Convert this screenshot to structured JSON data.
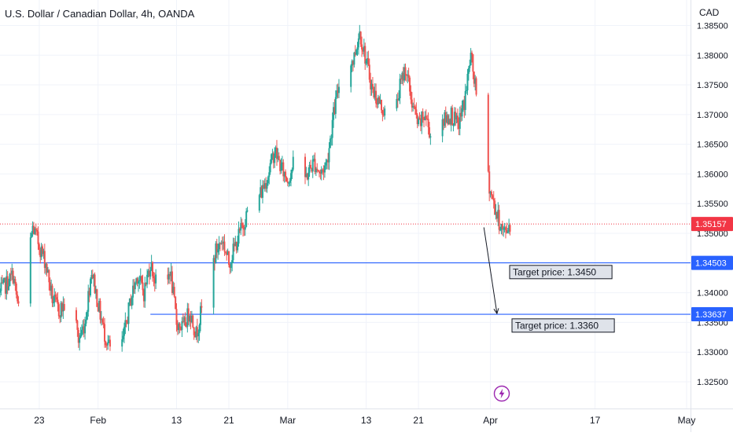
{
  "header": {
    "title": "U.S. Dollar / Canadian Dollar, 4h, OANDA",
    "currency": "CAD"
  },
  "icons": {
    "event": "flash-icon"
  },
  "colors": {
    "up": "#26a69a",
    "down": "#ef5350",
    "level_line": "#2962ff",
    "current_price": "#f23645",
    "arrow": "#131722"
  },
  "chart_data": {
    "type": "candlestick",
    "title": "U.S. Dollar / Canadian Dollar, 4h, OANDA",
    "y_unit": "CAD",
    "ylim": [
      1.3205,
      1.3885
    ],
    "yticks": [
      "1.32500",
      "1.33000",
      "1.33500",
      "1.34000",
      "1.34500",
      "1.35000",
      "1.35500",
      "1.36000",
      "1.36500",
      "1.37000",
      "1.37500",
      "1.38000",
      "1.38500"
    ],
    "xticks": [
      {
        "label": "23",
        "date": "2024-01-23"
      },
      {
        "label": "Feb",
        "date": "2024-02-01"
      },
      {
        "label": "13",
        "date": "2024-02-13"
      },
      {
        "label": "21",
        "date": "2024-02-21"
      },
      {
        "label": "Mar",
        "date": "2024-03-01"
      },
      {
        "label": "13",
        "date": "2024-03-13"
      },
      {
        "label": "21",
        "date": "2024-03-21"
      },
      {
        "label": "Apr",
        "date": "2024-04-01"
      },
      {
        "label": "17",
        "date": "2024-04-17"
      },
      {
        "label": "May",
        "date": "2024-05-01"
      }
    ],
    "grid": true,
    "close_path": [
      [
        "2024-01-17",
        1.34
      ],
      [
        "2024-01-19",
        1.343
      ],
      [
        "2024-01-20",
        1.336
      ],
      [
        "2024-01-21",
        1.344
      ],
      [
        "2024-01-22",
        1.351
      ],
      [
        "2024-01-23",
        1.348
      ],
      [
        "2024-01-24",
        1.345
      ],
      [
        "2024-01-25",
        1.339
      ],
      [
        "2024-01-26",
        1.337
      ],
      [
        "2024-01-28",
        1.339
      ],
      [
        "2024-01-29",
        1.332
      ],
      [
        "2024-01-30",
        1.335
      ],
      [
        "2024-01-31",
        1.344
      ],
      [
        "2024-02-01",
        1.338
      ],
      [
        "2024-02-02",
        1.333
      ],
      [
        "2024-02-03",
        1.33
      ],
      [
        "2024-02-04",
        1.328
      ],
      [
        "2024-02-05",
        1.333
      ],
      [
        "2024-02-06",
        1.339
      ],
      [
        "2024-02-07",
        1.343
      ],
      [
        "2024-02-08",
        1.34
      ],
      [
        "2024-02-09",
        1.345
      ],
      [
        "2024-02-10",
        1.341
      ],
      [
        "2024-02-11",
        1.338
      ],
      [
        "2024-02-12",
        1.344
      ],
      [
        "2024-02-13",
        1.335
      ],
      [
        "2024-02-14",
        1.334
      ],
      [
        "2024-02-15",
        1.337
      ],
      [
        "2024-02-16",
        1.333
      ],
      [
        "2024-02-17",
        1.338
      ],
      [
        "2024-02-18",
        1.342
      ],
      [
        "2024-02-19",
        1.347
      ],
      [
        "2024-02-20",
        1.349
      ],
      [
        "2024-02-21",
        1.345
      ],
      [
        "2024-02-22",
        1.348
      ],
      [
        "2024-02-23",
        1.351
      ],
      [
        "2024-02-24",
        1.354
      ],
      [
        "2024-02-26",
        1.357
      ],
      [
        "2024-02-27",
        1.36
      ],
      [
        "2024-02-28",
        1.364
      ],
      [
        "2024-02-29",
        1.361
      ],
      [
        "2024-03-01",
        1.359
      ],
      [
        "2024-03-02",
        1.362
      ],
      [
        "2024-03-03",
        1.358
      ],
      [
        "2024-03-04",
        1.36
      ],
      [
        "2024-03-05",
        1.362
      ],
      [
        "2024-03-06",
        1.36
      ],
      [
        "2024-03-07",
        1.362
      ],
      [
        "2024-03-08",
        1.37
      ],
      [
        "2024-03-09",
        1.376
      ],
      [
        "2024-03-10",
        1.38
      ],
      [
        "2024-03-11",
        1.379
      ],
      [
        "2024-03-12",
        1.384
      ],
      [
        "2024-03-13",
        1.379
      ],
      [
        "2024-03-14",
        1.374
      ],
      [
        "2024-03-15",
        1.372
      ],
      [
        "2024-03-16",
        1.37
      ],
      [
        "2024-03-17",
        1.367
      ],
      [
        "2024-03-18",
        1.374
      ],
      [
        "2024-03-19",
        1.378
      ],
      [
        "2024-03-20",
        1.372
      ],
      [
        "2024-03-21",
        1.368
      ],
      [
        "2024-03-22",
        1.37
      ],
      [
        "2024-03-23",
        1.366
      ],
      [
        "2024-03-24",
        1.37
      ],
      [
        "2024-03-25",
        1.369
      ],
      [
        "2024-03-26",
        1.37
      ],
      [
        "2024-03-27",
        1.368
      ],
      [
        "2024-03-28",
        1.372
      ],
      [
        "2024-03-29",
        1.38
      ],
      [
        "2024-03-30",
        1.372
      ],
      [
        "2024-03-31",
        1.364
      ],
      [
        "2024-04-01",
        1.357
      ],
      [
        "2024-04-02",
        1.353
      ],
      [
        "2024-04-03",
        1.35
      ],
      [
        "2024-04-04",
        1.3516
      ]
    ],
    "levels": [
      {
        "price": 1.34503,
        "label": "1.34503",
        "from": "2024-01-17",
        "name": "upper-level"
      },
      {
        "price": 1.33637,
        "label": "1.33637",
        "from": "2024-02-09",
        "name": "lower-level"
      }
    ],
    "current_price": {
      "price": 1.35157,
      "label": "1.35157"
    },
    "annotations": [
      {
        "text": "Target price: 1.3450",
        "price": 1.345
      },
      {
        "text": "Target price: 1.3360",
        "price": 1.336
      }
    ],
    "arrow": {
      "from": [
        "2024-03-31",
        1.351
      ],
      "to": [
        "2024-04-02",
        1.3365
      ]
    }
  }
}
